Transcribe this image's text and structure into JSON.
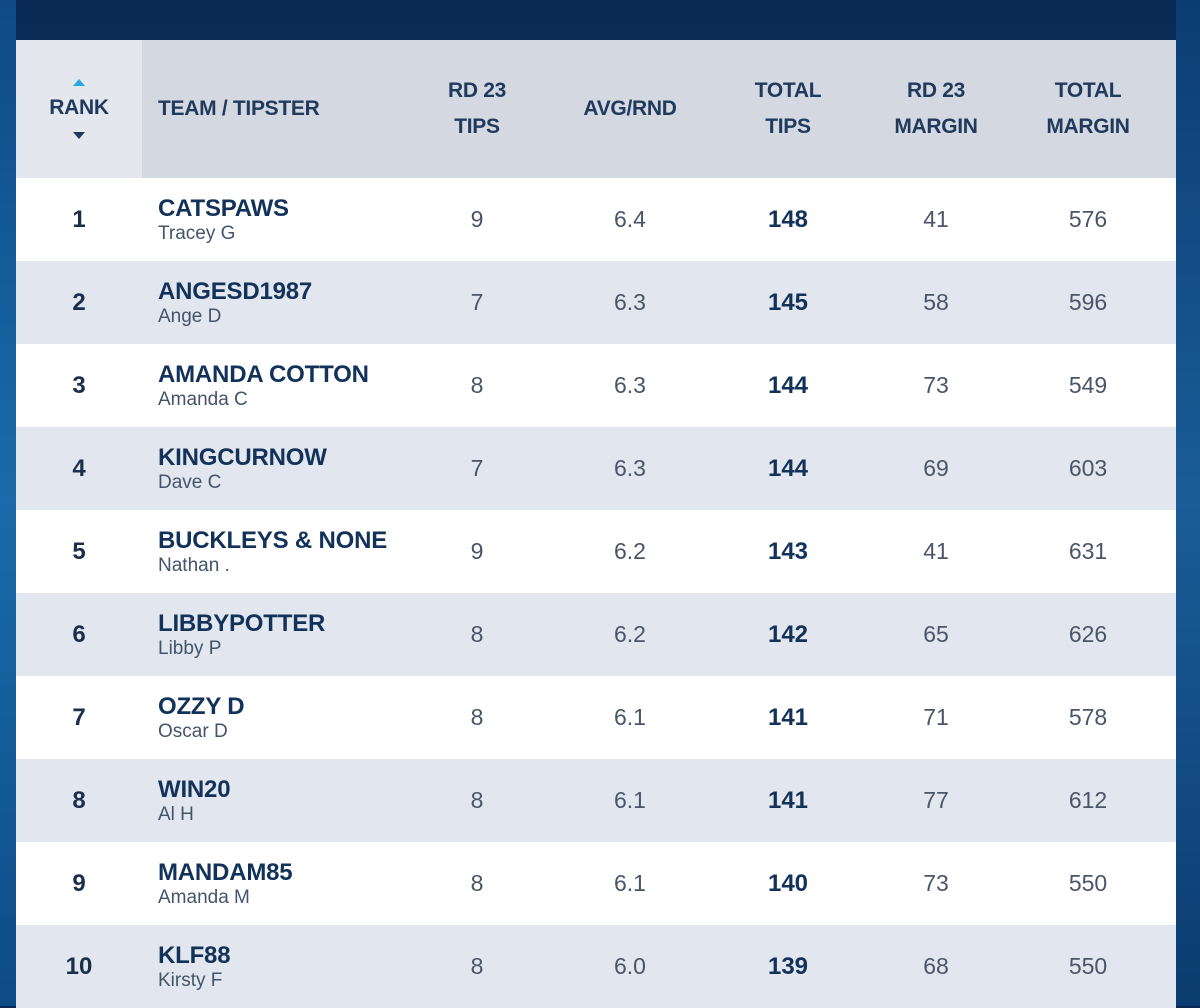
{
  "table": {
    "headers": {
      "rank": "RANK",
      "team": "TEAM / TIPSTER",
      "rd_tips": [
        "RD 23",
        "TIPS"
      ],
      "avg": "AVG/RND",
      "total_tips": [
        "TOTAL",
        "TIPS"
      ],
      "rd_margin": [
        "RD 23",
        "MARGIN"
      ],
      "total_margin": [
        "TOTAL",
        "MARGIN"
      ]
    },
    "rows": [
      {
        "rank": "1",
        "team": "CATSPAWS",
        "tipster": "Tracey G",
        "rd_tips": "9",
        "avg": "6.4",
        "total_tips": "148",
        "rd_margin": "41",
        "total_margin": "576"
      },
      {
        "rank": "2",
        "team": "ANGESD1987",
        "tipster": "Ange D",
        "rd_tips": "7",
        "avg": "6.3",
        "total_tips": "145",
        "rd_margin": "58",
        "total_margin": "596"
      },
      {
        "rank": "3",
        "team": "AMANDA COTTON",
        "tipster": "Amanda C",
        "rd_tips": "8",
        "avg": "6.3",
        "total_tips": "144",
        "rd_margin": "73",
        "total_margin": "549"
      },
      {
        "rank": "4",
        "team": "KINGCURNOW",
        "tipster": "Dave C",
        "rd_tips": "7",
        "avg": "6.3",
        "total_tips": "144",
        "rd_margin": "69",
        "total_margin": "603"
      },
      {
        "rank": "5",
        "team": "BUCKLEYS & NONE",
        "tipster": "Nathan .",
        "rd_tips": "9",
        "avg": "6.2",
        "total_tips": "143",
        "rd_margin": "41",
        "total_margin": "631"
      },
      {
        "rank": "6",
        "team": "LIBBYPOTTER",
        "tipster": "Libby P",
        "rd_tips": "8",
        "avg": "6.2",
        "total_tips": "142",
        "rd_margin": "65",
        "total_margin": "626"
      },
      {
        "rank": "7",
        "team": "OZZY D",
        "tipster": "Oscar D",
        "rd_tips": "8",
        "avg": "6.1",
        "total_tips": "141",
        "rd_margin": "71",
        "total_margin": "578"
      },
      {
        "rank": "8",
        "team": "WIN20",
        "tipster": "Al H",
        "rd_tips": "8",
        "avg": "6.1",
        "total_tips": "141",
        "rd_margin": "77",
        "total_margin": "612"
      },
      {
        "rank": "9",
        "team": "MANDAM85",
        "tipster": "Amanda M",
        "rd_tips": "8",
        "avg": "6.1",
        "total_tips": "140",
        "rd_margin": "73",
        "total_margin": "550"
      },
      {
        "rank": "10",
        "team": "KLF88",
        "tipster": "Kirsty F",
        "rd_tips": "8",
        "avg": "6.0",
        "total_tips": "139",
        "rd_margin": "68",
        "total_margin": "550"
      }
    ]
  },
  "colors": {
    "header_bg": "#d3d8e1",
    "rank_header_bg": "#e4e7ee",
    "stripe": "#e2e6ee",
    "text_dark": "#12325a",
    "sort_accent": "#2aa6e0"
  }
}
